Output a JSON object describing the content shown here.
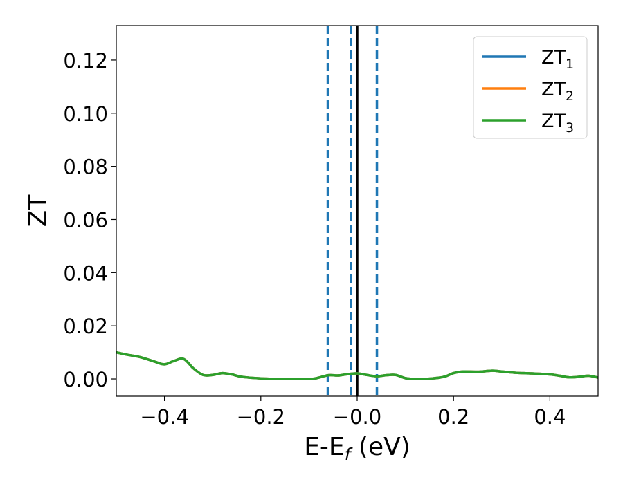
{
  "chart_data": {
    "type": "line",
    "xlabel_main": "E-E",
    "xlabel_sub": "f",
    "xlabel_unit": " (eV)",
    "ylabel": "ZT",
    "xlim": [
      -0.5,
      0.5
    ],
    "ylim": [
      -0.0065,
      0.133
    ],
    "x_ticks": [
      -0.4,
      -0.2,
      0.0,
      0.2,
      0.4
    ],
    "x_tick_labels": [
      "−0.4",
      "−0.2",
      "−0.0",
      "0.2",
      "0.4"
    ],
    "y_ticks": [
      0.0,
      0.02,
      0.04,
      0.06,
      0.08,
      0.1,
      0.12
    ],
    "y_tick_labels": [
      "0.00",
      "0.02",
      "0.04",
      "0.06",
      "0.08",
      "0.10",
      "0.12"
    ],
    "grid": false,
    "legend_position": "top-right",
    "reference_lines": {
      "solid": {
        "x": 0.0,
        "color": "#000000"
      },
      "dashed": {
        "x": [
          -0.061,
          -0.013,
          0.041
        ],
        "color": "#1f77b4"
      }
    },
    "series": [
      {
        "name": "ZT",
        "name_sub": "1",
        "color": "#1f77b4",
        "x": [
          -0.5,
          -0.48,
          -0.45,
          -0.42,
          -0.4,
          -0.38,
          -0.36,
          -0.34,
          -0.32,
          -0.3,
          -0.28,
          -0.26,
          -0.24,
          -0.2,
          -0.16,
          -0.12,
          -0.09,
          -0.06,
          -0.04,
          -0.02,
          0.0,
          0.02,
          0.04,
          0.06,
          0.08,
          0.1,
          0.12,
          0.15,
          0.18,
          0.2,
          0.22,
          0.25,
          0.28,
          0.3,
          0.33,
          0.36,
          0.4,
          0.42,
          0.44,
          0.46,
          0.48,
          0.5
        ],
        "y": [
          0.01,
          0.0092,
          0.0082,
          0.0065,
          0.0055,
          0.0068,
          0.0075,
          0.004,
          0.0015,
          0.0015,
          0.0022,
          0.0017,
          0.0008,
          0.0002,
          0.0,
          0.0,
          0.0001,
          0.0014,
          0.0013,
          0.0018,
          0.0021,
          0.0015,
          0.001,
          0.0014,
          0.0015,
          0.0003,
          0.0,
          0.0001,
          0.0008,
          0.0022,
          0.0028,
          0.0027,
          0.0031,
          0.0028,
          0.0023,
          0.0021,
          0.0017,
          0.0012,
          0.0006,
          0.0008,
          0.0012,
          0.0005
        ]
      },
      {
        "name": "ZT",
        "name_sub": "2",
        "color": "#ff7f0e",
        "x": [
          -0.5,
          -0.48,
          -0.45,
          -0.42,
          -0.4,
          -0.38,
          -0.36,
          -0.34,
          -0.32,
          -0.3,
          -0.28,
          -0.26,
          -0.24,
          -0.2,
          -0.16,
          -0.12,
          -0.09,
          -0.06,
          -0.04,
          -0.02,
          0.0,
          0.02,
          0.04,
          0.06,
          0.08,
          0.1,
          0.12,
          0.15,
          0.18,
          0.2,
          0.22,
          0.25,
          0.28,
          0.3,
          0.33,
          0.36,
          0.4,
          0.42,
          0.44,
          0.46,
          0.48,
          0.5
        ],
        "y": [
          0.01,
          0.0092,
          0.0082,
          0.0065,
          0.0055,
          0.0068,
          0.0075,
          0.004,
          0.0015,
          0.0015,
          0.0022,
          0.0017,
          0.0008,
          0.0002,
          0.0,
          0.0,
          0.0001,
          0.0014,
          0.0013,
          0.0018,
          0.0021,
          0.0015,
          0.001,
          0.0014,
          0.0015,
          0.0003,
          0.0,
          0.0001,
          0.0008,
          0.0022,
          0.0028,
          0.0027,
          0.0031,
          0.0028,
          0.0023,
          0.0021,
          0.0017,
          0.0012,
          0.0006,
          0.0008,
          0.0012,
          0.0005
        ]
      },
      {
        "name": "ZT",
        "name_sub": "3",
        "color": "#2ca02c",
        "x": [
          -0.5,
          -0.48,
          -0.45,
          -0.42,
          -0.4,
          -0.38,
          -0.36,
          -0.34,
          -0.32,
          -0.3,
          -0.28,
          -0.26,
          -0.24,
          -0.2,
          -0.16,
          -0.12,
          -0.09,
          -0.06,
          -0.04,
          -0.02,
          0.0,
          0.02,
          0.04,
          0.06,
          0.08,
          0.1,
          0.12,
          0.15,
          0.18,
          0.2,
          0.22,
          0.25,
          0.28,
          0.3,
          0.33,
          0.36,
          0.4,
          0.42,
          0.44,
          0.46,
          0.48,
          0.5
        ],
        "y": [
          0.01,
          0.0092,
          0.0082,
          0.0065,
          0.0055,
          0.0068,
          0.0075,
          0.004,
          0.0015,
          0.0015,
          0.0022,
          0.0017,
          0.0008,
          0.0002,
          0.0,
          0.0,
          0.0001,
          0.0014,
          0.0013,
          0.0018,
          0.0021,
          0.0015,
          0.001,
          0.0014,
          0.0015,
          0.0003,
          0.0,
          0.0001,
          0.0008,
          0.0022,
          0.0028,
          0.0027,
          0.0031,
          0.0028,
          0.0023,
          0.0021,
          0.0017,
          0.0012,
          0.0006,
          0.0008,
          0.0012,
          0.0005
        ]
      }
    ]
  }
}
